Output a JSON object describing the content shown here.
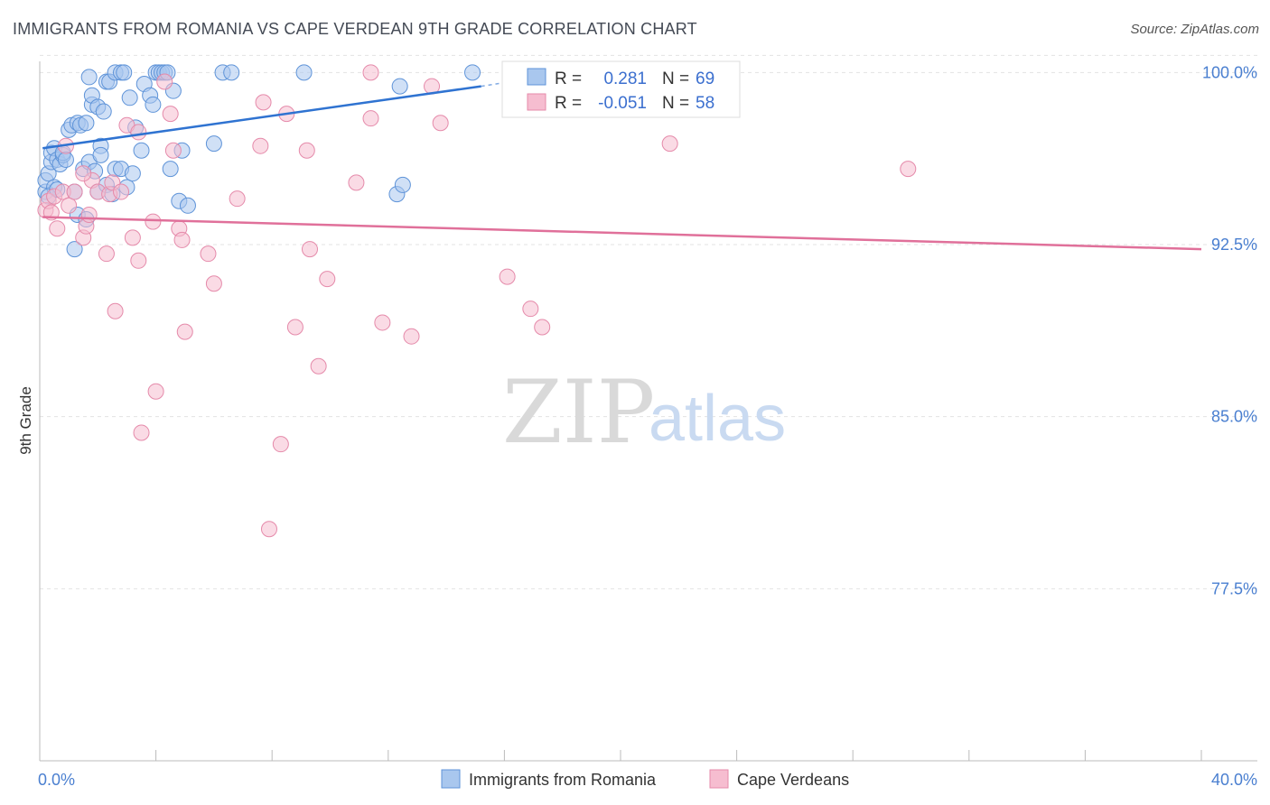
{
  "title": "IMMIGRANTS FROM ROMANIA VS CAPE VERDEAN 9TH GRADE CORRELATION CHART",
  "source": "Source: ZipAtlas.com",
  "watermark": {
    "zip": "ZIP",
    "atlas": "atlas"
  },
  "colors": {
    "romania_fill": "#a9c7ee",
    "romania_stroke": "#5e93d8",
    "romania_line": "#2f73d1",
    "cape_fill": "#f6bdd0",
    "cape_stroke": "#e58aaa",
    "cape_line": "#e0709a",
    "grid": "#e3e3e3",
    "axis": "#bbbbbb"
  },
  "stats": {
    "r_label": "R =",
    "n_label": "N =",
    "romania": {
      "r": "0.281",
      "n": "69"
    },
    "cape": {
      "r": "-0.051",
      "n": "58"
    }
  },
  "legend": {
    "romania": "Immigrants from Romania",
    "cape": "Cape Verdeans"
  },
  "chart_data": {
    "type": "scatter",
    "xlabel": "",
    "ylabel": "9th Grade",
    "xlim": [
      0,
      40
    ],
    "ylim": [
      70.0,
      100.8
    ],
    "x_tick_labels": [
      {
        "value": 0,
        "label": "0.0%"
      },
      {
        "value": 40,
        "label": "40.0%"
      }
    ],
    "y_tick_labels": [
      {
        "value": 100.0,
        "label": "100.0%"
      },
      {
        "value": 92.5,
        "label": "92.5%"
      },
      {
        "value": 85.0,
        "label": "85.0%"
      },
      {
        "value": 77.5,
        "label": "77.5%"
      }
    ],
    "series": [
      {
        "name": "Immigrants from Romania",
        "trend": {
          "x": [
            0.1,
            15.2
          ],
          "y": [
            96.7,
            99.4
          ]
        },
        "trend_ext": {
          "x": [
            15.2,
            16.2
          ],
          "y": [
            99.4,
            99.6
          ]
        },
        "points": [
          [
            0.2,
            94.8
          ],
          [
            0.2,
            95.3
          ],
          [
            0.3,
            95.6
          ],
          [
            0.4,
            96.1
          ],
          [
            0.4,
            96.5
          ],
          [
            0.5,
            96.7
          ],
          [
            0.5,
            95.0
          ],
          [
            0.6,
            96.2
          ],
          [
            0.7,
            96.0
          ],
          [
            0.8,
            96.4
          ],
          [
            0.8,
            96.5
          ],
          [
            0.9,
            96.2
          ],
          [
            1.0,
            97.5
          ],
          [
            1.1,
            97.7
          ],
          [
            1.2,
            94.8
          ],
          [
            1.3,
            97.8
          ],
          [
            1.3,
            93.8
          ],
          [
            1.4,
            97.7
          ],
          [
            1.5,
            95.8
          ],
          [
            1.6,
            93.6
          ],
          [
            1.6,
            97.8
          ],
          [
            1.7,
            96.1
          ],
          [
            1.7,
            99.8
          ],
          [
            1.8,
            98.6
          ],
          [
            1.8,
            99.0
          ],
          [
            1.9,
            95.7
          ],
          [
            2.0,
            98.5
          ],
          [
            2.0,
            94.8
          ],
          [
            2.1,
            96.8
          ],
          [
            2.1,
            96.4
          ],
          [
            2.2,
            98.3
          ],
          [
            2.3,
            95.1
          ],
          [
            2.3,
            99.6
          ],
          [
            2.4,
            99.6
          ],
          [
            2.5,
            94.7
          ],
          [
            2.6,
            95.8
          ],
          [
            2.6,
            100.0
          ],
          [
            2.8,
            100.0
          ],
          [
            2.8,
            95.8
          ],
          [
            2.9,
            100.0
          ],
          [
            3.0,
            95.0
          ],
          [
            3.1,
            98.9
          ],
          [
            3.2,
            95.6
          ],
          [
            3.3,
            97.6
          ],
          [
            3.5,
            96.6
          ],
          [
            3.6,
            99.5
          ],
          [
            3.8,
            99.0
          ],
          [
            3.9,
            98.6
          ],
          [
            4.0,
            100.0
          ],
          [
            4.1,
            100.0
          ],
          [
            4.2,
            100.0
          ],
          [
            4.3,
            100.0
          ],
          [
            4.4,
            100.0
          ],
          [
            4.5,
            95.8
          ],
          [
            4.6,
            99.2
          ],
          [
            4.8,
            94.4
          ],
          [
            4.9,
            96.6
          ],
          [
            5.1,
            94.2
          ],
          [
            6.0,
            96.9
          ],
          [
            6.3,
            100.0
          ],
          [
            6.6,
            100.0
          ],
          [
            9.1,
            100.0
          ],
          [
            12.3,
            94.7
          ],
          [
            12.5,
            95.1
          ],
          [
            12.4,
            99.4
          ],
          [
            14.9,
            100.0
          ],
          [
            1.2,
            92.3
          ],
          [
            0.3,
            94.6
          ],
          [
            0.6,
            94.9
          ]
        ]
      },
      {
        "name": "Cape Verdeans",
        "trend": {
          "x": [
            0.1,
            40.0
          ],
          "y": [
            93.7,
            92.3
          ]
        },
        "points": [
          [
            0.2,
            94.0
          ],
          [
            0.3,
            94.4
          ],
          [
            0.4,
            93.9
          ],
          [
            0.5,
            94.6
          ],
          [
            0.8,
            94.8
          ],
          [
            0.9,
            96.8
          ],
          [
            1.0,
            94.2
          ],
          [
            1.2,
            94.8
          ],
          [
            1.5,
            92.8
          ],
          [
            1.6,
            93.3
          ],
          [
            1.7,
            93.8
          ],
          [
            1.8,
            95.3
          ],
          [
            2.0,
            94.8
          ],
          [
            2.3,
            92.1
          ],
          [
            2.4,
            94.7
          ],
          [
            2.5,
            95.2
          ],
          [
            2.6,
            89.6
          ],
          [
            2.8,
            94.8
          ],
          [
            3.2,
            92.8
          ],
          [
            3.4,
            91.8
          ],
          [
            3.5,
            84.3
          ],
          [
            3.0,
            97.7
          ],
          [
            3.4,
            97.4
          ],
          [
            3.9,
            93.5
          ],
          [
            4.0,
            86.1
          ],
          [
            4.3,
            99.6
          ],
          [
            4.5,
            98.2
          ],
          [
            4.6,
            96.6
          ],
          [
            4.8,
            93.2
          ],
          [
            4.9,
            92.7
          ],
          [
            5.0,
            88.7
          ],
          [
            5.8,
            92.1
          ],
          [
            6.0,
            90.8
          ],
          [
            6.8,
            94.5
          ],
          [
            7.6,
            96.8
          ],
          [
            7.7,
            98.7
          ],
          [
            7.9,
            80.1
          ],
          [
            8.3,
            83.8
          ],
          [
            8.5,
            98.2
          ],
          [
            8.8,
            88.9
          ],
          [
            9.2,
            96.6
          ],
          [
            9.3,
            92.3
          ],
          [
            9.6,
            87.2
          ],
          [
            9.9,
            91.0
          ],
          [
            10.9,
            95.2
          ],
          [
            11.4,
            100.0
          ],
          [
            11.4,
            98.0
          ],
          [
            11.8,
            89.1
          ],
          [
            12.8,
            88.5
          ],
          [
            13.5,
            99.4
          ],
          [
            13.8,
            97.8
          ],
          [
            16.1,
            91.1
          ],
          [
            16.9,
            89.7
          ],
          [
            17.3,
            88.9
          ],
          [
            21.7,
            96.9
          ],
          [
            29.9,
            95.8
          ],
          [
            0.6,
            93.2
          ],
          [
            1.5,
            95.6
          ]
        ]
      }
    ]
  }
}
